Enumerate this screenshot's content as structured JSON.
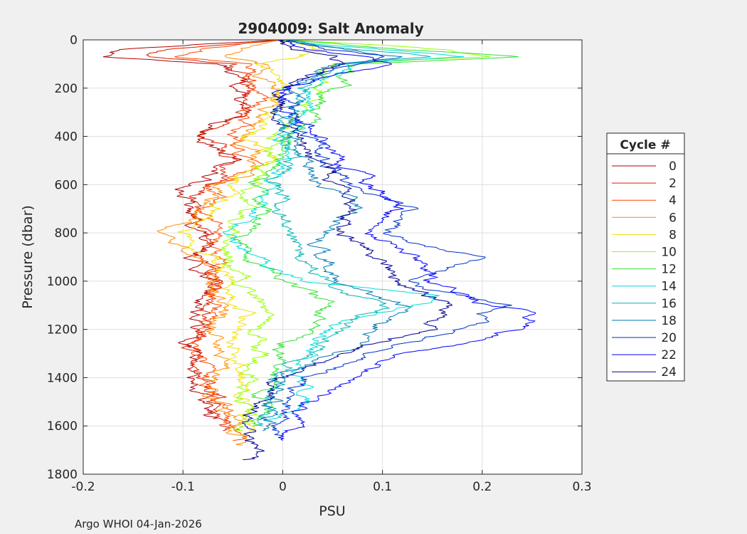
{
  "chart_data": {
    "type": "line",
    "title": "2904009: Salt Anomaly",
    "xlabel": "PSU",
    "ylabel": "Pressure (dbar)",
    "xlim": [
      -0.2,
      0.3
    ],
    "ylim": [
      0,
      1800
    ],
    "y_reversed": true,
    "grid": true,
    "x_ticks": [
      -0.2,
      -0.1,
      0,
      0.1,
      0.2,
      0.3
    ],
    "x_tick_labels": [
      "-0.2",
      "-0.1",
      "0",
      "0.1",
      "0.2",
      "0.3"
    ],
    "y_ticks": [
      0,
      200,
      400,
      600,
      800,
      1000,
      1200,
      1400,
      1600,
      1800
    ],
    "y_tick_labels": [
      "0",
      "200",
      "400",
      "600",
      "800",
      "1000",
      "1200",
      "1400",
      "1600",
      "1800"
    ],
    "legend": {
      "title": "Cycle #",
      "position": "right",
      "entries": [
        "0",
        "2",
        "4",
        "6",
        "8",
        "10",
        "12",
        "14",
        "16",
        "18",
        "20",
        "22",
        "24"
      ]
    },
    "footer": "Argo WHOI 04-Jan-2026",
    "series": [
      {
        "name": "0",
        "color": "#b40000",
        "profile": [
          [
            0,
            0.0
          ],
          [
            40,
            -0.16
          ],
          [
            70,
            -0.18
          ],
          [
            100,
            -0.06
          ],
          [
            200,
            -0.04
          ],
          [
            300,
            -0.05
          ],
          [
            400,
            -0.08
          ],
          [
            500,
            -0.05
          ],
          [
            600,
            -0.09
          ],
          [
            700,
            -0.1
          ],
          [
            800,
            -0.08
          ],
          [
            900,
            -0.09
          ],
          [
            1000,
            -0.07
          ],
          [
            1100,
            -0.08
          ],
          [
            1200,
            -0.09
          ],
          [
            1300,
            -0.09
          ],
          [
            1400,
            -0.09
          ],
          [
            1500,
            -0.08
          ],
          [
            1570,
            -0.07
          ]
        ]
      },
      {
        "name": "2",
        "color": "#dc1e00",
        "profile": [
          [
            0,
            0.0
          ],
          [
            40,
            -0.12
          ],
          [
            70,
            -0.14
          ],
          [
            100,
            -0.05
          ],
          [
            200,
            -0.03
          ],
          [
            300,
            -0.04
          ],
          [
            400,
            -0.07
          ],
          [
            500,
            -0.04
          ],
          [
            600,
            -0.08
          ],
          [
            700,
            -0.09
          ],
          [
            800,
            -0.07
          ],
          [
            900,
            -0.08
          ],
          [
            1000,
            -0.07
          ],
          [
            1100,
            -0.07
          ],
          [
            1200,
            -0.08
          ],
          [
            1300,
            -0.09
          ],
          [
            1400,
            -0.08
          ],
          [
            1500,
            -0.07
          ],
          [
            1620,
            -0.06
          ]
        ]
      },
      {
        "name": "4",
        "color": "#ff4600",
        "profile": [
          [
            0,
            0.0
          ],
          [
            40,
            -0.08
          ],
          [
            70,
            -0.1
          ],
          [
            100,
            -0.04
          ],
          [
            200,
            -0.02
          ],
          [
            300,
            -0.03
          ],
          [
            400,
            -0.05
          ],
          [
            500,
            -0.03
          ],
          [
            600,
            -0.07
          ],
          [
            700,
            -0.08
          ],
          [
            800,
            -0.06
          ],
          [
            900,
            -0.07
          ],
          [
            1000,
            -0.07
          ],
          [
            1100,
            -0.06
          ],
          [
            1200,
            -0.08
          ],
          [
            1300,
            -0.08
          ],
          [
            1400,
            -0.08
          ],
          [
            1500,
            -0.06
          ],
          [
            1660,
            -0.05
          ]
        ]
      },
      {
        "name": "6",
        "color": "#ff8c00",
        "profile": [
          [
            0,
            0.0
          ],
          [
            40,
            -0.04
          ],
          [
            70,
            -0.06
          ],
          [
            100,
            -0.03
          ],
          [
            200,
            -0.01
          ],
          [
            300,
            -0.02
          ],
          [
            400,
            -0.04
          ],
          [
            500,
            -0.02
          ],
          [
            600,
            -0.06
          ],
          [
            700,
            -0.07
          ],
          [
            800,
            -0.12
          ],
          [
            900,
            -0.09
          ],
          [
            1000,
            -0.07
          ],
          [
            1100,
            -0.06
          ],
          [
            1200,
            -0.07
          ],
          [
            1300,
            -0.06
          ],
          [
            1400,
            -0.07
          ],
          [
            1500,
            -0.06
          ],
          [
            1680,
            -0.04
          ]
        ]
      },
      {
        "name": "8",
        "color": "#f0e100",
        "profile": [
          [
            0,
            0.0
          ],
          [
            40,
            0.04
          ],
          [
            70,
            0.02
          ],
          [
            100,
            -0.02
          ],
          [
            200,
            0.0
          ],
          [
            300,
            -0.01
          ],
          [
            400,
            -0.03
          ],
          [
            500,
            -0.01
          ],
          [
            600,
            -0.05
          ],
          [
            700,
            -0.06
          ],
          [
            800,
            -0.1
          ],
          [
            900,
            -0.07
          ],
          [
            1000,
            -0.05
          ],
          [
            1100,
            -0.04
          ],
          [
            1200,
            -0.04
          ],
          [
            1300,
            -0.04
          ],
          [
            1400,
            -0.04
          ],
          [
            1500,
            -0.04
          ],
          [
            1640,
            -0.04
          ]
        ]
      },
      {
        "name": "10",
        "color": "#96ff00",
        "profile": [
          [
            0,
            0.0
          ],
          [
            40,
            0.15
          ],
          [
            70,
            0.2
          ],
          [
            100,
            0.05
          ],
          [
            200,
            0.04
          ],
          [
            300,
            0.02
          ],
          [
            400,
            0.0
          ],
          [
            500,
            -0.02
          ],
          [
            600,
            -0.03
          ],
          [
            700,
            -0.04
          ],
          [
            800,
            -0.05
          ],
          [
            900,
            -0.06
          ],
          [
            1000,
            -0.04
          ],
          [
            1100,
            -0.02
          ],
          [
            1200,
            -0.03
          ],
          [
            1300,
            -0.02
          ],
          [
            1400,
            -0.03
          ],
          [
            1500,
            -0.04
          ],
          [
            1620,
            -0.04
          ]
        ]
      },
      {
        "name": "12",
        "color": "#32e132",
        "profile": [
          [
            0,
            0.0
          ],
          [
            40,
            0.12
          ],
          [
            70,
            0.23
          ],
          [
            100,
            0.08
          ],
          [
            200,
            0.05
          ],
          [
            300,
            0.03
          ],
          [
            400,
            0.01
          ],
          [
            500,
            -0.01
          ],
          [
            600,
            -0.02
          ],
          [
            700,
            -0.02
          ],
          [
            800,
            -0.03
          ],
          [
            900,
            -0.04
          ],
          [
            1000,
            0.0
          ],
          [
            1100,
            0.05
          ],
          [
            1200,
            0.02
          ],
          [
            1300,
            0.0
          ],
          [
            1400,
            -0.01
          ],
          [
            1500,
            -0.02
          ],
          [
            1600,
            -0.03
          ]
        ]
      },
      {
        "name": "14",
        "color": "#00dcdc",
        "profile": [
          [
            0,
            0.0
          ],
          [
            40,
            0.1
          ],
          [
            70,
            0.18
          ],
          [
            100,
            0.07
          ],
          [
            200,
            0.03
          ],
          [
            300,
            0.02
          ],
          [
            400,
            0.01
          ],
          [
            500,
            0.0
          ],
          [
            600,
            -0.01
          ],
          [
            700,
            -0.02
          ],
          [
            800,
            -0.05
          ],
          [
            900,
            -0.03
          ],
          [
            1000,
            0.02
          ],
          [
            1060,
            0.17
          ],
          [
            1200,
            0.04
          ],
          [
            1300,
            0.02
          ],
          [
            1400,
            0.02
          ],
          [
            1500,
            0.02
          ],
          [
            1580,
            -0.01
          ]
        ]
      },
      {
        "name": "16",
        "color": "#00b4b4",
        "profile": [
          [
            0,
            0.0
          ],
          [
            40,
            0.08
          ],
          [
            70,
            0.15
          ],
          [
            100,
            0.06
          ],
          [
            200,
            0.02
          ],
          [
            300,
            0.01
          ],
          [
            400,
            0.0
          ],
          [
            500,
            0.0
          ],
          [
            600,
            0.0
          ],
          [
            700,
            0.0
          ],
          [
            800,
            0.01
          ],
          [
            900,
            0.02
          ],
          [
            1000,
            0.05
          ],
          [
            1100,
            0.1
          ],
          [
            1200,
            0.06
          ],
          [
            1300,
            0.03
          ],
          [
            1400,
            0.0
          ],
          [
            1500,
            -0.01
          ],
          [
            1600,
            -0.02
          ]
        ]
      },
      {
        "name": "18",
        "color": "#0078b4",
        "profile": [
          [
            0,
            0.0
          ],
          [
            40,
            0.06
          ],
          [
            70,
            0.12
          ],
          [
            100,
            0.05
          ],
          [
            200,
            0.01
          ],
          [
            300,
            0.0
          ],
          [
            400,
            0.01
          ],
          [
            500,
            0.02
          ],
          [
            600,
            0.04
          ],
          [
            700,
            0.08
          ],
          [
            800,
            0.05
          ],
          [
            900,
            0.04
          ],
          [
            1000,
            0.06
          ],
          [
            1100,
            0.12
          ],
          [
            1200,
            0.09
          ],
          [
            1300,
            0.05
          ],
          [
            1400,
            0.0
          ],
          [
            1500,
            -0.01
          ],
          [
            1620,
            -0.02
          ]
        ]
      },
      {
        "name": "20",
        "color": "#0032c8",
        "profile": [
          [
            0,
            0.0
          ],
          [
            40,
            0.04
          ],
          [
            70,
            0.1
          ],
          [
            100,
            0.08
          ],
          [
            200,
            0.0
          ],
          [
            300,
            0.0
          ],
          [
            400,
            0.03
          ],
          [
            500,
            0.04
          ],
          [
            600,
            0.07
          ],
          [
            700,
            0.13
          ],
          [
            800,
            0.1
          ],
          [
            900,
            0.2
          ],
          [
            1000,
            0.12
          ],
          [
            1100,
            0.22
          ],
          [
            1200,
            0.18
          ],
          [
            1300,
            0.08
          ],
          [
            1400,
            0.02
          ],
          [
            1500,
            0.01
          ],
          [
            1640,
            0.0
          ]
        ]
      },
      {
        "name": "22",
        "color": "#0000ff",
        "profile": [
          [
            0,
            0.0
          ],
          [
            40,
            0.02
          ],
          [
            70,
            0.08
          ],
          [
            100,
            0.1
          ],
          [
            200,
            0.01
          ],
          [
            300,
            0.0
          ],
          [
            400,
            0.04
          ],
          [
            500,
            0.05
          ],
          [
            600,
            0.09
          ],
          [
            700,
            0.11
          ],
          [
            800,
            0.09
          ],
          [
            900,
            0.14
          ],
          [
            1000,
            0.15
          ],
          [
            1100,
            0.2
          ],
          [
            1130,
            0.26
          ],
          [
            1200,
            0.25
          ],
          [
            1300,
            0.12
          ],
          [
            1400,
            0.08
          ],
          [
            1500,
            0.02
          ],
          [
            1660,
            0.0
          ]
        ]
      },
      {
        "name": "24",
        "color": "#000096",
        "profile": [
          [
            0,
            0.0
          ],
          [
            40,
            0.01
          ],
          [
            70,
            0.05
          ],
          [
            100,
            0.06
          ],
          [
            200,
            0.0
          ],
          [
            300,
            -0.01
          ],
          [
            400,
            0.02
          ],
          [
            500,
            0.03
          ],
          [
            600,
            0.06
          ],
          [
            700,
            0.08
          ],
          [
            800,
            0.06
          ],
          [
            900,
            0.1
          ],
          [
            1000,
            0.12
          ],
          [
            1100,
            0.16
          ],
          [
            1200,
            0.15
          ],
          [
            1300,
            0.06
          ],
          [
            1400,
            -0.01
          ],
          [
            1500,
            -0.02
          ],
          [
            1600,
            -0.03
          ],
          [
            1740,
            -0.04
          ]
        ]
      }
    ]
  }
}
